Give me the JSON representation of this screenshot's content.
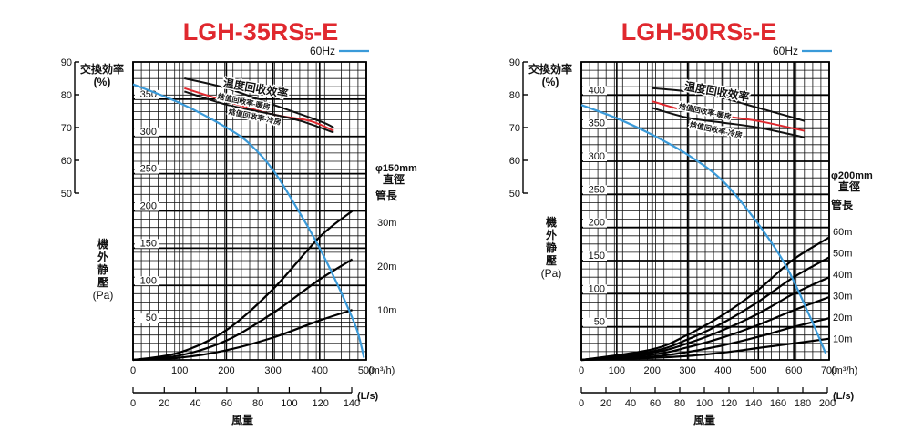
{
  "chart_data": [
    {
      "type": "line",
      "title_main": "LGH-35RS",
      "title_sub": "5",
      "title_suffix": "-E",
      "title_color": "#e0282e",
      "legend_label": "60Hz",
      "legend_color": "#3a9ad9",
      "efficiency_axis": {
        "label": [
          "交換効率",
          "(%)"
        ],
        "ticks": [
          50,
          60,
          70,
          80,
          90
        ],
        "range": [
          50,
          90
        ]
      },
      "pressure_axis": {
        "label": [
          "機",
          "外",
          "静",
          "壓",
          "(Pa)"
        ],
        "ticks": [
          50,
          100,
          150,
          200,
          250,
          300,
          350
        ],
        "range": [
          0,
          400
        ]
      },
      "flow_axis": {
        "ticks": [
          0,
          100,
          200,
          300,
          400,
          500
        ],
        "unit": "(m³/h)",
        "range": [
          0,
          500
        ]
      },
      "flow_ls_axis": {
        "ticks": [
          0,
          20,
          40,
          60,
          80,
          100,
          120,
          140
        ],
        "unit": "(L/s)"
      },
      "xlabel": "風量",
      "pipe_label": [
        "φ150mm",
        "直徑",
        "管長"
      ],
      "efficiency_curves": [
        {
          "name": "温度回收效率",
          "color": "#111111",
          "points": [
            [
              110,
              85
            ],
            [
              200,
              82
            ],
            [
              300,
              77
            ],
            [
              400,
              72
            ],
            [
              430,
              70
            ]
          ]
        },
        {
          "name": "焓值回收率-暖房",
          "color": "#e0282e",
          "points": [
            [
              110,
              82
            ],
            [
              200,
              78
            ],
            [
              300,
              74
            ],
            [
              380,
              72
            ],
            [
              430,
              69
            ]
          ]
        },
        {
          "name": "焓值回收率-冷房",
          "color": "#111111",
          "points": [
            [
              110,
              81
            ],
            [
              200,
              77
            ],
            [
              300,
              74
            ],
            [
              360,
              72
            ],
            [
              430,
              68.5
            ]
          ]
        }
      ],
      "pq_curve": {
        "name": "60Hz",
        "color": "#3a9ad9",
        "points": [
          [
            0,
            370
          ],
          [
            100,
            345
          ],
          [
            200,
            312
          ],
          [
            250,
            290
          ],
          [
            300,
            255
          ],
          [
            350,
            205
          ],
          [
            400,
            150
          ],
          [
            450,
            85
          ],
          [
            480,
            40
          ],
          [
            495,
            3
          ]
        ]
      },
      "pipe_curves": [
        {
          "name": "30m",
          "label": "30m",
          "points": [
            [
              0,
              0
            ],
            [
              100,
              10
            ],
            [
              200,
              40
            ],
            [
              300,
              95
            ],
            [
              400,
              165
            ],
            [
              470,
              200
            ]
          ]
        },
        {
          "name": "20m",
          "label": "20m",
          "points": [
            [
              0,
              0
            ],
            [
              100,
              6
            ],
            [
              200,
              26
            ],
            [
              300,
              63
            ],
            [
              400,
              108
            ],
            [
              470,
              135
            ]
          ]
        },
        {
          "name": "10m",
          "label": "10m",
          "points": [
            [
              0,
              0
            ],
            [
              100,
              3
            ],
            [
              200,
              13
            ],
            [
              300,
              30
            ],
            [
              400,
              53
            ],
            [
              470,
              67
            ]
          ]
        }
      ]
    },
    {
      "type": "line",
      "title_main": "LGH-50RS",
      "title_sub": "5",
      "title_suffix": "-E",
      "title_color": "#e0282e",
      "legend_label": "60Hz",
      "legend_color": "#3a9ad9",
      "efficiency_axis": {
        "label": [
          "交換効率",
          "(%)"
        ],
        "ticks": [
          50,
          60,
          70,
          80,
          90
        ],
        "range": [
          50,
          90
        ]
      },
      "pressure_axis": {
        "label": [
          "機",
          "外",
          "静",
          "壓",
          "(Pa)"
        ],
        "ticks": [
          50,
          100,
          150,
          200,
          250,
          300,
          350,
          400
        ],
        "range": [
          0,
          450
        ]
      },
      "flow_axis": {
        "ticks": [
          0,
          100,
          200,
          300,
          400,
          500,
          600,
          700
        ],
        "unit": "(m³/h)",
        "range": [
          0,
          700
        ]
      },
      "flow_ls_axis": {
        "ticks": [
          0,
          20,
          40,
          60,
          80,
          100,
          120,
          140,
          160,
          180,
          200
        ],
        "unit": "(L/s)"
      },
      "xlabel": "風量",
      "pipe_label": [
        "φ200mm",
        "直徑",
        "管長"
      ],
      "efficiency_curves": [
        {
          "name": "温度回收效率",
          "color": "#111111",
          "points": [
            [
              200,
              82
            ],
            [
              300,
              81
            ],
            [
              400,
              79
            ],
            [
              500,
              76
            ],
            [
              600,
              73
            ],
            [
              630,
              72
            ]
          ]
        },
        {
          "name": "焓值回收率-暖房",
          "color": "#e0282e",
          "points": [
            [
              200,
              78
            ],
            [
              300,
              75
            ],
            [
              400,
              73.5
            ],
            [
              500,
              72
            ],
            [
              630,
              69
            ]
          ]
        },
        {
          "name": "焓值回收率-冷房",
          "color": "#111111",
          "points": [
            [
              200,
              76
            ],
            [
              300,
              73
            ],
            [
              400,
              71.5
            ],
            [
              500,
              70
            ],
            [
              630,
              67
            ]
          ]
        }
      ],
      "pq_curve": {
        "name": "60Hz",
        "color": "#3a9ad9",
        "points": [
          [
            0,
            385
          ],
          [
            100,
            365
          ],
          [
            200,
            340
          ],
          [
            300,
            310
          ],
          [
            400,
            270
          ],
          [
            500,
            205
          ],
          [
            580,
            140
          ],
          [
            650,
            60
          ],
          [
            690,
            10
          ]
        ]
      },
      "pipe_curves": [
        {
          "name": "60m",
          "label": "60m",
          "points": [
            [
              0,
              0
            ],
            [
              200,
              16
            ],
            [
              300,
              38
            ],
            [
              400,
              68
            ],
            [
              500,
              106
            ],
            [
              600,
              152
            ],
            [
              700,
              185
            ]
          ]
        },
        {
          "name": "50m",
          "label": "50m",
          "points": [
            [
              0,
              0
            ],
            [
              200,
              13
            ],
            [
              300,
              31
            ],
            [
              400,
              56
            ],
            [
              500,
              88
            ],
            [
              600,
              125
            ],
            [
              700,
              155
            ]
          ]
        },
        {
          "name": "40m",
          "label": "40m",
          "points": [
            [
              0,
              0
            ],
            [
              200,
              11
            ],
            [
              300,
              25
            ],
            [
              400,
              45
            ],
            [
              500,
              70
            ],
            [
              600,
              100
            ],
            [
              700,
              125
            ]
          ]
        },
        {
          "name": "30m",
          "label": "30m",
          "points": [
            [
              0,
              0
            ],
            [
              200,
              8
            ],
            [
              300,
              19
            ],
            [
              400,
              34
            ],
            [
              500,
              53
            ],
            [
              600,
              75
            ],
            [
              700,
              95
            ]
          ]
        },
        {
          "name": "20m",
          "label": "20m",
          "points": [
            [
              0,
              0
            ],
            [
              200,
              5
            ],
            [
              300,
              12
            ],
            [
              400,
              22
            ],
            [
              500,
              35
            ],
            [
              600,
              50
            ],
            [
              700,
              63
            ]
          ]
        },
        {
          "name": "10m",
          "label": "10m",
          "points": [
            [
              0,
              0
            ],
            [
              200,
              3
            ],
            [
              300,
              6
            ],
            [
              400,
              11
            ],
            [
              500,
              18
            ],
            [
              600,
              25
            ],
            [
              700,
              32
            ]
          ]
        }
      ]
    }
  ]
}
